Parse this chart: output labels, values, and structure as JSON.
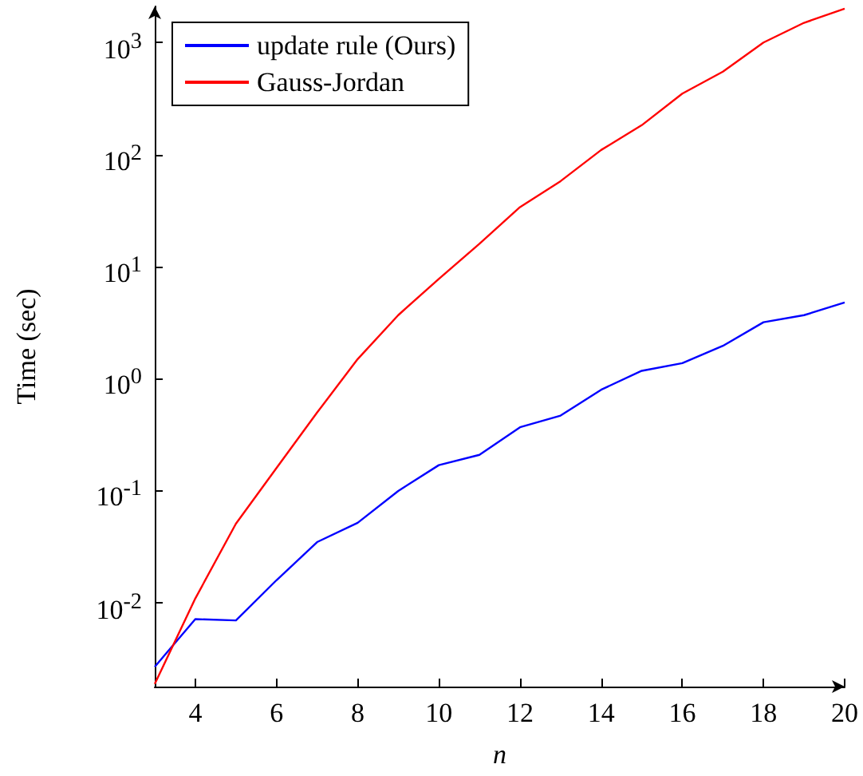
{
  "chart_data": {
    "type": "line",
    "xlabel": "n",
    "ylabel": "Time (sec)",
    "log": "y",
    "grid": false,
    "legend": "top left",
    "marker": "none",
    "line_style": "solid",
    "x": [
      3,
      4,
      5,
      6,
      7,
      8,
      9,
      10,
      11,
      12,
      13,
      14,
      15,
      16,
      17,
      18,
      19,
      20
    ],
    "xlim": [
      3,
      20
    ],
    "xticks": [
      4,
      6,
      8,
      10,
      12,
      14,
      16,
      18,
      20
    ],
    "ylim": [
      0.0018,
      2100
    ],
    "yticks": [
      {
        "value": 0.01,
        "label": "10$^{-2}$"
      },
      {
        "value": 0.1,
        "label": "10$^{-1}$"
      },
      {
        "value": 1,
        "label": "10$^{0}$"
      },
      {
        "value": 10,
        "label": "10$^{1}$"
      },
      {
        "value": 100,
        "label": "10$^{2}$"
      },
      {
        "value": 1000,
        "label": "10$^{3}$"
      }
    ],
    "series": [
      {
        "name": "update rule (Ours)",
        "color": "#0000ff",
        "values": [
          0.0027,
          0.0072,
          0.007,
          0.016,
          0.035,
          0.052,
          0.1,
          0.17,
          0.21,
          0.37,
          0.47,
          0.8,
          1.18,
          1.38,
          1.97,
          3.2,
          3.7,
          4.8
        ]
      },
      {
        "name": "Gauss-Jordan",
        "color": "#ff0000",
        "values": [
          0.0019,
          0.011,
          0.051,
          0.16,
          0.5,
          1.5,
          3.7,
          7.8,
          16,
          34,
          58,
          110,
          183,
          350,
          550,
          1000,
          1500,
          2000
        ]
      }
    ]
  }
}
